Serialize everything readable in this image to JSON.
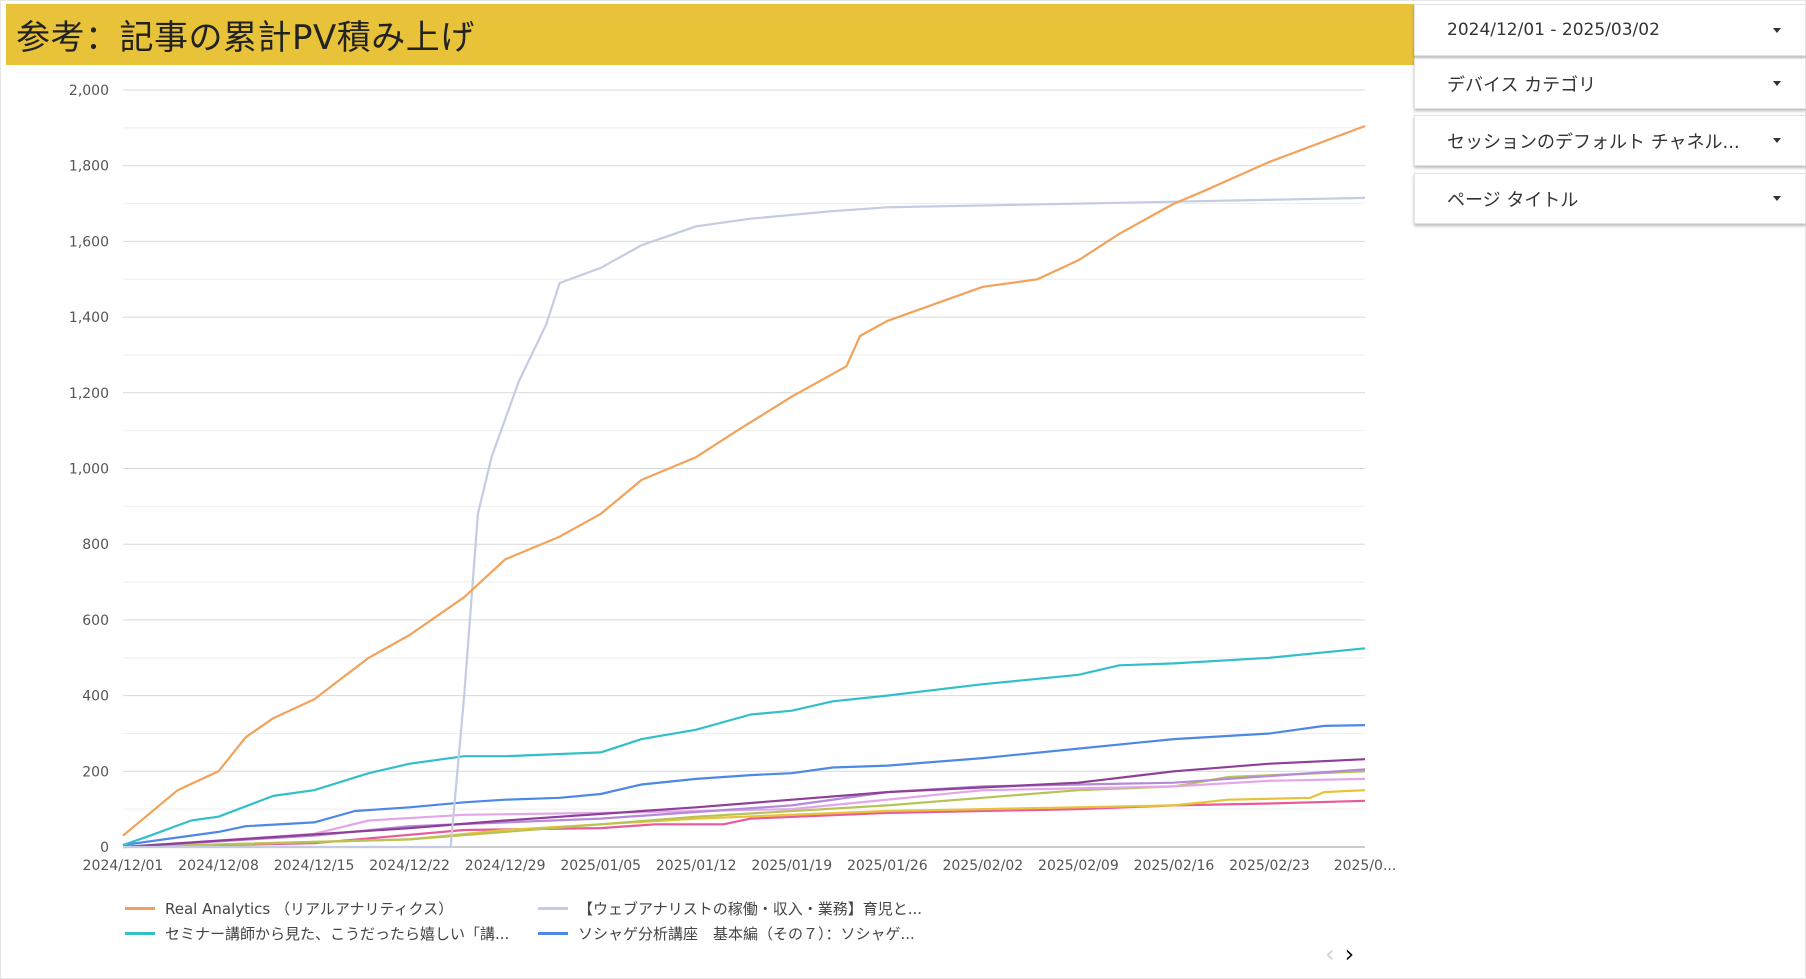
{
  "header": {
    "title": "参考：記事の累計PV積み上げ"
  },
  "filters": {
    "date_range": "2024/12/01 - 2025/03/02",
    "device": "デバイス カテゴリ",
    "channel": "セッションのデフォルト チャネル...",
    "page_title": "ページ タイトル"
  },
  "legend": [
    {
      "name": "Real Analytics （リアルアナリティクス）",
      "color": "#f2a25a"
    },
    {
      "name": "【ウェブアナリストの稼働・収入・業務】育児と...",
      "color": "#c5cbe3"
    },
    {
      "name": "セミナー講師から見た、こうだったら嬉しい「講...",
      "color": "#33bfc9"
    },
    {
      "name": "ソシャゲ分析講座　基本編（その７）：ソシャゲ...",
      "color": "#4d88e6"
    }
  ],
  "pagination": {
    "prev_icon": "chevron-left-icon",
    "next_icon": "chevron-right-icon"
  },
  "chart_data": {
    "type": "line",
    "title": "参考：記事の累計PV積み上げ",
    "xlabel": "",
    "ylabel": "",
    "x_ticks": [
      "2024/12/01",
      "2024/12/08",
      "2024/12/15",
      "2024/12/22",
      "2024/12/29",
      "2025/01/05",
      "2025/01/12",
      "2025/01/19",
      "2025/01/26",
      "2025/02/02",
      "2025/02/09",
      "2025/02/16",
      "2025/02/23",
      "2025/0..."
    ],
    "x_start": "2024/12/01",
    "x_end": "2025/03/02",
    "y_ticks": [
      "0",
      "200",
      "400",
      "600",
      "800",
      "1,000",
      "1,200",
      "1,400",
      "1,600",
      "1,800",
      "2,000"
    ],
    "ylim": [
      0,
      2000
    ],
    "grid": true,
    "legend_position": "bottom",
    "series": [
      {
        "name": "Real Analytics （リアルアナリティクス）",
        "color": "#f2a25a",
        "points": [
          [
            "2024/12/01",
            30
          ],
          [
            "2024/12/05",
            150
          ],
          [
            "2024/12/08",
            200
          ],
          [
            "2024/12/10",
            290
          ],
          [
            "2024/12/12",
            340
          ],
          [
            "2024/12/15",
            390
          ],
          [
            "2024/12/19",
            500
          ],
          [
            "2024/12/22",
            560
          ],
          [
            "2024/12/26",
            660
          ],
          [
            "2024/12/29",
            760
          ],
          [
            "2025/01/02",
            820
          ],
          [
            "2025/01/05",
            880
          ],
          [
            "2025/01/08",
            970
          ],
          [
            "2025/01/12",
            1030
          ],
          [
            "2025/01/15",
            1100
          ],
          [
            "2025/01/19",
            1190
          ],
          [
            "2025/01/23",
            1270
          ],
          [
            "2025/01/24",
            1350
          ],
          [
            "2025/01/26",
            1390
          ],
          [
            "2025/02/02",
            1480
          ],
          [
            "2025/02/06",
            1500
          ],
          [
            "2025/02/09",
            1550
          ],
          [
            "2025/02/12",
            1620
          ],
          [
            "2025/02/16",
            1700
          ],
          [
            "2025/02/18",
            1730
          ],
          [
            "2025/02/23",
            1810
          ],
          [
            "2025/03/02",
            1905
          ]
        ]
      },
      {
        "name": "【ウェブアナリストの稼働・収入・業務】育児と...",
        "color": "#c5cbe3",
        "points": [
          [
            "2024/12/01",
            0
          ],
          [
            "2024/12/25",
            0
          ],
          [
            "2024/12/26",
            400
          ],
          [
            "2024/12/27",
            880
          ],
          [
            "2024/12/28",
            1030
          ],
          [
            "2024/12/30",
            1230
          ],
          [
            "2025/01/01",
            1380
          ],
          [
            "2025/01/02",
            1490
          ],
          [
            "2025/01/05",
            1530
          ],
          [
            "2025/01/08",
            1590
          ],
          [
            "2025/01/12",
            1640
          ],
          [
            "2025/01/16",
            1660
          ],
          [
            "2025/01/22",
            1680
          ],
          [
            "2025/01/26",
            1690
          ],
          [
            "2025/02/09",
            1700
          ],
          [
            "2025/02/16",
            1705
          ],
          [
            "2025/03/02",
            1715
          ]
        ]
      },
      {
        "name": "セミナー講師から見た、こうだったら嬉しい「講...",
        "color": "#33bfc9",
        "points": [
          [
            "2024/12/01",
            5
          ],
          [
            "2024/12/03",
            30
          ],
          [
            "2024/12/06",
            70
          ],
          [
            "2024/12/08",
            80
          ],
          [
            "2024/12/12",
            135
          ],
          [
            "2024/12/15",
            150
          ],
          [
            "2024/12/19",
            195
          ],
          [
            "2024/12/22",
            220
          ],
          [
            "2024/12/26",
            240
          ],
          [
            "2024/12/29",
            240
          ],
          [
            "2025/01/05",
            250
          ],
          [
            "2025/01/08",
            285
          ],
          [
            "2025/01/12",
            310
          ],
          [
            "2025/01/16",
            350
          ],
          [
            "2025/01/19",
            360
          ],
          [
            "2025/01/22",
            385
          ],
          [
            "2025/01/26",
            400
          ],
          [
            "2025/02/02",
            430
          ],
          [
            "2025/02/09",
            455
          ],
          [
            "2025/02/12",
            480
          ],
          [
            "2025/02/16",
            485
          ],
          [
            "2025/02/23",
            500
          ],
          [
            "2025/03/02",
            525
          ]
        ]
      },
      {
        "name": "ソシャゲ分析講座　基本編（その７）：ソシャゲ...",
        "color": "#4d88e6",
        "points": [
          [
            "2024/12/01",
            5
          ],
          [
            "2024/12/05",
            25
          ],
          [
            "2024/12/08",
            40
          ],
          [
            "2024/12/10",
            55
          ],
          [
            "2024/12/15",
            65
          ],
          [
            "2024/12/18",
            95
          ],
          [
            "2024/12/22",
            105
          ],
          [
            "2024/12/26",
            118
          ],
          [
            "2024/12/29",
            125
          ],
          [
            "2025/01/02",
            130
          ],
          [
            "2025/01/05",
            140
          ],
          [
            "2025/01/08",
            165
          ],
          [
            "2025/01/12",
            180
          ],
          [
            "2025/01/16",
            190
          ],
          [
            "2025/01/19",
            195
          ],
          [
            "2025/01/22",
            210
          ],
          [
            "2025/01/26",
            215
          ],
          [
            "2025/02/02",
            235
          ],
          [
            "2025/02/09",
            260
          ],
          [
            "2025/02/16",
            285
          ],
          [
            "2025/02/23",
            300
          ],
          [
            "2025/02/27",
            320
          ],
          [
            "2025/03/02",
            322
          ]
        ]
      },
      {
        "color": "#8e3f97",
        "points": [
          [
            "2024/12/01",
            0
          ],
          [
            "2024/12/22",
            50
          ],
          [
            "2024/12/29",
            70
          ],
          [
            "2025/01/12",
            105
          ],
          [
            "2025/01/26",
            145
          ],
          [
            "2025/02/09",
            170
          ],
          [
            "2025/02/16",
            200
          ],
          [
            "2025/02/23",
            220
          ],
          [
            "2025/03/02",
            232
          ]
        ]
      },
      {
        "color": "#b58ad8",
        "points": [
          [
            "2024/12/01",
            0
          ],
          [
            "2024/12/15",
            30
          ],
          [
            "2024/12/22",
            55
          ],
          [
            "2025/01/05",
            75
          ],
          [
            "2025/01/19",
            110
          ],
          [
            "2025/01/26",
            145
          ],
          [
            "2025/02/02",
            160
          ],
          [
            "2025/02/16",
            170
          ],
          [
            "2025/03/02",
            205
          ]
        ]
      },
      {
        "color": "#e3a6e8",
        "points": [
          [
            "2024/12/01",
            0
          ],
          [
            "2024/12/15",
            35
          ],
          [
            "2024/12/19",
            70
          ],
          [
            "2024/12/26",
            85
          ],
          [
            "2025/01/05",
            90
          ],
          [
            "2025/01/19",
            100
          ],
          [
            "2025/02/02",
            150
          ],
          [
            "2025/02/16",
            160
          ],
          [
            "2025/02/23",
            175
          ],
          [
            "2025/03/02",
            180
          ]
        ]
      },
      {
        "color": "#b7c455",
        "points": [
          [
            "2024/12/01",
            0
          ],
          [
            "2024/12/22",
            20
          ],
          [
            "2024/12/29",
            40
          ],
          [
            "2025/01/12",
            80
          ],
          [
            "2025/01/26",
            110
          ],
          [
            "2025/02/09",
            150
          ],
          [
            "2025/02/16",
            160
          ],
          [
            "2025/02/20",
            185
          ],
          [
            "2025/03/02",
            200
          ]
        ]
      },
      {
        "color": "#e8c339",
        "points": [
          [
            "2024/12/01",
            0
          ],
          [
            "2024/12/22",
            20
          ],
          [
            "2024/12/29",
            45
          ],
          [
            "2025/01/12",
            75
          ],
          [
            "2025/01/26",
            95
          ],
          [
            "2025/02/09",
            105
          ],
          [
            "2025/02/16",
            110
          ],
          [
            "2025/02/20",
            125
          ],
          [
            "2025/02/26",
            130
          ],
          [
            "2025/02/27",
            145
          ],
          [
            "2025/03/02",
            150
          ]
        ]
      },
      {
        "color": "#e95a9a",
        "points": [
          [
            "2024/12/01",
            0
          ],
          [
            "2024/12/15",
            10
          ],
          [
            "2024/12/26",
            45
          ],
          [
            "2025/01/05",
            50
          ],
          [
            "2025/01/09",
            60
          ],
          [
            "2025/01/14",
            60
          ],
          [
            "2025/01/16",
            75
          ],
          [
            "2025/01/26",
            90
          ],
          [
            "2025/02/09",
            100
          ],
          [
            "2025/02/16",
            110
          ],
          [
            "2025/02/23",
            115
          ],
          [
            "2025/03/02",
            122
          ]
        ]
      }
    ]
  }
}
